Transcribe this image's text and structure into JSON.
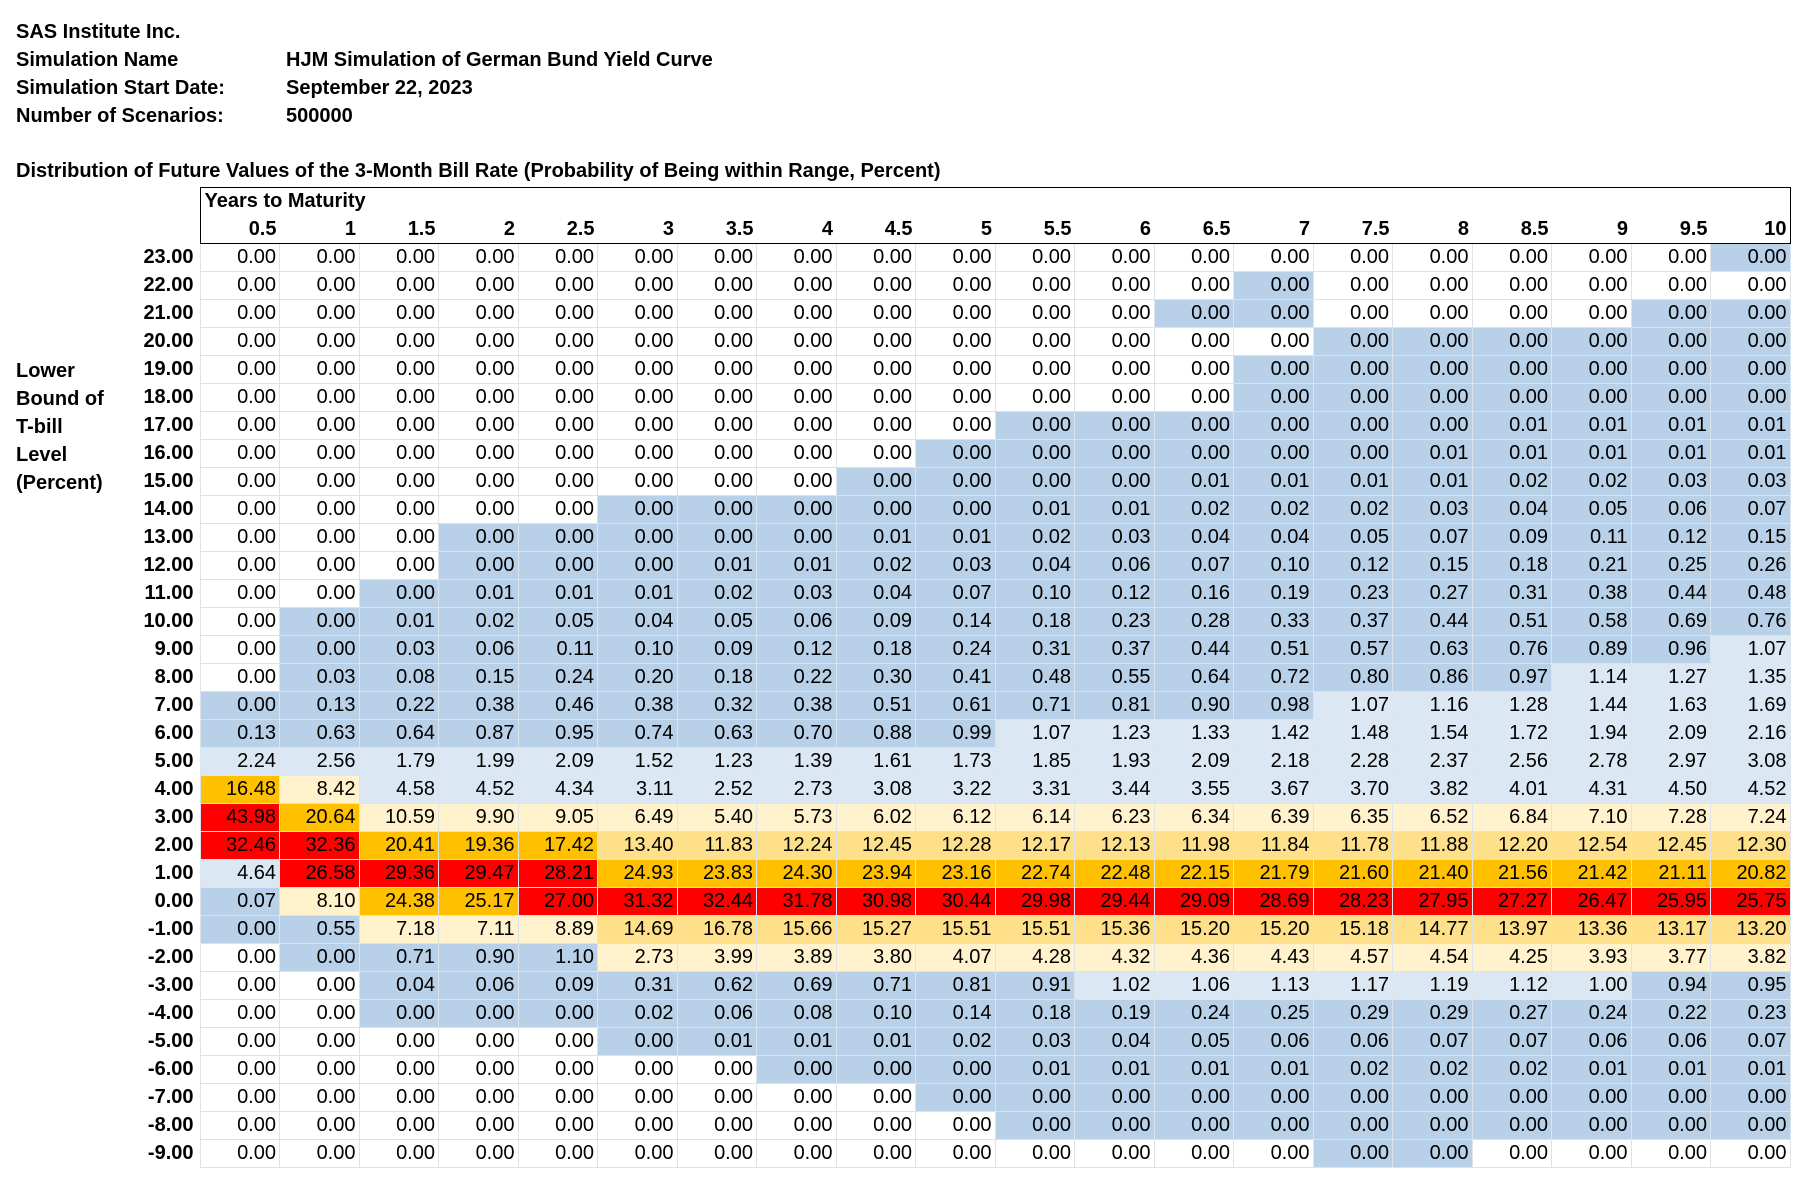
{
  "header": {
    "company": "SAS Institute Inc.",
    "sim_name_label": "Simulation Name",
    "sim_name": "HJM Simulation of German Bund Yield Curve",
    "start_date_label": "Simulation Start Date:",
    "start_date": "September 22, 2023",
    "scenarios_label": "Number of Scenarios:",
    "scenarios": "500000"
  },
  "table_title": "Distribution of Future Values of the 3-Month Bill Rate (Probability of Being within Range, Percent)",
  "side_label": [
    "Lower",
    "Bound of",
    "T-bill",
    "Level",
    "(Percent)"
  ],
  "column_group_label": "Years to Maturity",
  "columns": [
    "0.5",
    "1",
    "1.5",
    "2",
    "2.5",
    "3",
    "3.5",
    "4",
    "4.5",
    "5",
    "5.5",
    "6",
    "6.5",
    "7",
    "7.5",
    "8",
    "8.5",
    "9",
    "9.5",
    "10"
  ],
  "palette": {
    "blue": "#b8d0e8",
    "lightblue": "#dbe7f3",
    "lightyellow": "#fff2cc",
    "yellow": "#ffe08a",
    "gold": "#ffc000",
    "red": "#ff0000"
  },
  "rows": [
    {
      "label": "23.00",
      "values": [
        "0.00",
        "0.00",
        "0.00",
        "0.00",
        "0.00",
        "0.00",
        "0.00",
        "0.00",
        "0.00",
        "0.00",
        "0.00",
        "0.00",
        "0.00",
        "0.00",
        "0.00",
        "0.00",
        "0.00",
        "0.00",
        "0.00",
        "0.00"
      ],
      "shades": "wwwwwwwwwwwwwwwwwwwb"
    },
    {
      "label": "22.00",
      "values": [
        "0.00",
        "0.00",
        "0.00",
        "0.00",
        "0.00",
        "0.00",
        "0.00",
        "0.00",
        "0.00",
        "0.00",
        "0.00",
        "0.00",
        "0.00",
        "0.00",
        "0.00",
        "0.00",
        "0.00",
        "0.00",
        "0.00",
        "0.00"
      ],
      "shades": "wwwwwwwwwwwwwbwwwwww"
    },
    {
      "label": "21.00",
      "values": [
        "0.00",
        "0.00",
        "0.00",
        "0.00",
        "0.00",
        "0.00",
        "0.00",
        "0.00",
        "0.00",
        "0.00",
        "0.00",
        "0.00",
        "0.00",
        "0.00",
        "0.00",
        "0.00",
        "0.00",
        "0.00",
        "0.00",
        "0.00"
      ],
      "shades": "wwwwwwwwwwwwbbwwwwbb"
    },
    {
      "label": "20.00",
      "values": [
        "0.00",
        "0.00",
        "0.00",
        "0.00",
        "0.00",
        "0.00",
        "0.00",
        "0.00",
        "0.00",
        "0.00",
        "0.00",
        "0.00",
        "0.00",
        "0.00",
        "0.00",
        "0.00",
        "0.00",
        "0.00",
        "0.00",
        "0.00"
      ],
      "shades": "wwwwwwwwwwwwwwbbbbbb"
    },
    {
      "label": "19.00",
      "values": [
        "0.00",
        "0.00",
        "0.00",
        "0.00",
        "0.00",
        "0.00",
        "0.00",
        "0.00",
        "0.00",
        "0.00",
        "0.00",
        "0.00",
        "0.00",
        "0.00",
        "0.00",
        "0.00",
        "0.00",
        "0.00",
        "0.00",
        "0.00"
      ],
      "shades": "wwwwwwwwwwwwwbbbbbbb"
    },
    {
      "label": "18.00",
      "values": [
        "0.00",
        "0.00",
        "0.00",
        "0.00",
        "0.00",
        "0.00",
        "0.00",
        "0.00",
        "0.00",
        "0.00",
        "0.00",
        "0.00",
        "0.00",
        "0.00",
        "0.00",
        "0.00",
        "0.00",
        "0.00",
        "0.00",
        "0.00"
      ],
      "shades": "wwwwwwwwwwwwwbbbbbbb"
    },
    {
      "label": "17.00",
      "values": [
        "0.00",
        "0.00",
        "0.00",
        "0.00",
        "0.00",
        "0.00",
        "0.00",
        "0.00",
        "0.00",
        "0.00",
        "0.00",
        "0.00",
        "0.00",
        "0.00",
        "0.00",
        "0.00",
        "0.01",
        "0.01",
        "0.01",
        "0.01"
      ],
      "shades": "wwwwwwwwwwbbbbbbbbbb"
    },
    {
      "label": "16.00",
      "values": [
        "0.00",
        "0.00",
        "0.00",
        "0.00",
        "0.00",
        "0.00",
        "0.00",
        "0.00",
        "0.00",
        "0.00",
        "0.00",
        "0.00",
        "0.00",
        "0.00",
        "0.00",
        "0.01",
        "0.01",
        "0.01",
        "0.01",
        "0.01"
      ],
      "shades": "wwwwwwwwwbbbbbbbbbbb"
    },
    {
      "label": "15.00",
      "values": [
        "0.00",
        "0.00",
        "0.00",
        "0.00",
        "0.00",
        "0.00",
        "0.00",
        "0.00",
        "0.00",
        "0.00",
        "0.00",
        "0.00",
        "0.01",
        "0.01",
        "0.01",
        "0.01",
        "0.02",
        "0.02",
        "0.03",
        "0.03"
      ],
      "shades": "wwwwwwwwbbbbbbbbbbbb"
    },
    {
      "label": "14.00",
      "values": [
        "0.00",
        "0.00",
        "0.00",
        "0.00",
        "0.00",
        "0.00",
        "0.00",
        "0.00",
        "0.00",
        "0.00",
        "0.01",
        "0.01",
        "0.02",
        "0.02",
        "0.02",
        "0.03",
        "0.04",
        "0.05",
        "0.06",
        "0.07"
      ],
      "shades": "wwwwwbbbbbbbbbbbbbbb"
    },
    {
      "label": "13.00",
      "values": [
        "0.00",
        "0.00",
        "0.00",
        "0.00",
        "0.00",
        "0.00",
        "0.00",
        "0.00",
        "0.01",
        "0.01",
        "0.02",
        "0.03",
        "0.04",
        "0.04",
        "0.05",
        "0.07",
        "0.09",
        "0.11",
        "0.12",
        "0.15"
      ],
      "shades": "wwwbbbbbbbbbbbbbbbbb"
    },
    {
      "label": "12.00",
      "values": [
        "0.00",
        "0.00",
        "0.00",
        "0.00",
        "0.00",
        "0.00",
        "0.01",
        "0.01",
        "0.02",
        "0.03",
        "0.04",
        "0.06",
        "0.07",
        "0.10",
        "0.12",
        "0.15",
        "0.18",
        "0.21",
        "0.25",
        "0.26"
      ],
      "shades": "wwwbbbbbbbbbbbbbbbbb"
    },
    {
      "label": "11.00",
      "values": [
        "0.00",
        "0.00",
        "0.00",
        "0.01",
        "0.01",
        "0.01",
        "0.02",
        "0.03",
        "0.04",
        "0.07",
        "0.10",
        "0.12",
        "0.16",
        "0.19",
        "0.23",
        "0.27",
        "0.31",
        "0.38",
        "0.44",
        "0.48"
      ],
      "shades": "wwbbbbbbbbbbbbbbbbbb"
    },
    {
      "label": "10.00",
      "values": [
        "0.00",
        "0.00",
        "0.01",
        "0.02",
        "0.05",
        "0.04",
        "0.05",
        "0.06",
        "0.09",
        "0.14",
        "0.18",
        "0.23",
        "0.28",
        "0.33",
        "0.37",
        "0.44",
        "0.51",
        "0.58",
        "0.69",
        "0.76"
      ],
      "shades": "wbbbbbbbbbbbbbbbbbbb"
    },
    {
      "label": "9.00",
      "values": [
        "0.00",
        "0.00",
        "0.03",
        "0.06",
        "0.11",
        "0.10",
        "0.09",
        "0.12",
        "0.18",
        "0.24",
        "0.31",
        "0.37",
        "0.44",
        "0.51",
        "0.57",
        "0.63",
        "0.76",
        "0.89",
        "0.96",
        "1.07"
      ],
      "shades": "wbbbbbbbbbbbbbbbbbbl"
    },
    {
      "label": "8.00",
      "values": [
        "0.00",
        "0.03",
        "0.08",
        "0.15",
        "0.24",
        "0.20",
        "0.18",
        "0.22",
        "0.30",
        "0.41",
        "0.48",
        "0.55",
        "0.64",
        "0.72",
        "0.80",
        "0.86",
        "0.97",
        "1.14",
        "1.27",
        "1.35"
      ],
      "shades": "wbbbbbbbbbbbbbbbblll"
    },
    {
      "label": "7.00",
      "values": [
        "0.00",
        "0.13",
        "0.22",
        "0.38",
        "0.46",
        "0.38",
        "0.32",
        "0.38",
        "0.51",
        "0.61",
        "0.71",
        "0.81",
        "0.90",
        "0.98",
        "1.07",
        "1.16",
        "1.28",
        "1.44",
        "1.63",
        "1.69"
      ],
      "shades": "bbbbbbbbbbbbbbllllll"
    },
    {
      "label": "6.00",
      "values": [
        "0.13",
        "0.63",
        "0.64",
        "0.87",
        "0.95",
        "0.74",
        "0.63",
        "0.70",
        "0.88",
        "0.99",
        "1.07",
        "1.23",
        "1.33",
        "1.42",
        "1.48",
        "1.54",
        "1.72",
        "1.94",
        "2.09",
        "2.16"
      ],
      "shades": "bbbbbbbbbbllllllllll"
    },
    {
      "label": "5.00",
      "values": [
        "2.24",
        "2.56",
        "1.79",
        "1.99",
        "2.09",
        "1.52",
        "1.23",
        "1.39",
        "1.61",
        "1.73",
        "1.85",
        "1.93",
        "2.09",
        "2.18",
        "2.28",
        "2.37",
        "2.56",
        "2.78",
        "2.97",
        "3.08"
      ],
      "shades": "llllllllllllllllllll"
    },
    {
      "label": "4.00",
      "values": [
        "16.48",
        "8.42",
        "4.58",
        "4.52",
        "4.34",
        "3.11",
        "2.52",
        "2.73",
        "3.08",
        "3.22",
        "3.31",
        "3.44",
        "3.55",
        "3.67",
        "3.70",
        "3.82",
        "4.01",
        "4.31",
        "4.50",
        "4.52"
      ],
      "shades": "gyllllllllllllllllll"
    },
    {
      "label": "3.00",
      "values": [
        "43.98",
        "20.64",
        "10.59",
        "9.90",
        "9.05",
        "6.49",
        "5.40",
        "5.73",
        "6.02",
        "6.12",
        "6.14",
        "6.23",
        "6.34",
        "6.39",
        "6.35",
        "6.52",
        "6.84",
        "7.10",
        "7.28",
        "7.24"
      ],
      "shades": "rgyyyyyyyyyyyyyyyyyy"
    },
    {
      "label": "2.00",
      "values": [
        "32.46",
        "32.36",
        "20.41",
        "19.36",
        "17.42",
        "13.40",
        "11.83",
        "12.24",
        "12.45",
        "12.28",
        "12.17",
        "12.13",
        "11.98",
        "11.84",
        "11.78",
        "11.88",
        "12.20",
        "12.54",
        "12.45",
        "12.30"
      ],
      "shades": "rrgggooooooooooooooo"
    },
    {
      "label": "1.00",
      "values": [
        "4.64",
        "26.58",
        "29.36",
        "29.47",
        "28.21",
        "24.93",
        "23.83",
        "24.30",
        "23.94",
        "23.16",
        "22.74",
        "22.48",
        "22.15",
        "21.79",
        "21.60",
        "21.40",
        "21.56",
        "21.42",
        "21.11",
        "20.82"
      ],
      "shades": "lrrrrggggggggggggggg"
    },
    {
      "label": "0.00",
      "values": [
        "0.07",
        "8.10",
        "24.38",
        "25.17",
        "27.00",
        "31.32",
        "32.44",
        "31.78",
        "30.98",
        "30.44",
        "29.98",
        "29.44",
        "29.09",
        "28.69",
        "28.23",
        "27.95",
        "27.27",
        "26.47",
        "25.95",
        "25.75"
      ],
      "shades": "byggrrrrrrrrrrrrrrrr"
    },
    {
      "label": "-1.00",
      "values": [
        "0.00",
        "0.55",
        "7.18",
        "7.11",
        "8.89",
        "14.69",
        "16.78",
        "15.66",
        "15.27",
        "15.51",
        "15.51",
        "15.36",
        "15.20",
        "15.20",
        "15.18",
        "14.77",
        "13.97",
        "13.36",
        "13.17",
        "13.20"
      ],
      "shades": "bbyyyooooooooooooooo"
    },
    {
      "label": "-2.00",
      "values": [
        "0.00",
        "0.00",
        "0.71",
        "0.90",
        "1.10",
        "2.73",
        "3.99",
        "3.89",
        "3.80",
        "4.07",
        "4.28",
        "4.32",
        "4.36",
        "4.43",
        "4.57",
        "4.54",
        "4.25",
        "3.93",
        "3.77",
        "3.82"
      ],
      "shades": "wbbbbyyyyyyyyyyyyyyy"
    },
    {
      "label": "-3.00",
      "values": [
        "0.00",
        "0.00",
        "0.04",
        "0.06",
        "0.09",
        "0.31",
        "0.62",
        "0.69",
        "0.71",
        "0.81",
        "0.91",
        "1.02",
        "1.06",
        "1.13",
        "1.17",
        "1.19",
        "1.12",
        "1.00",
        "0.94",
        "0.95"
      ],
      "shades": "wwbbbbbbbbblllllllbb"
    },
    {
      "label": "-4.00",
      "values": [
        "0.00",
        "0.00",
        "0.00",
        "0.00",
        "0.00",
        "0.02",
        "0.06",
        "0.08",
        "0.10",
        "0.14",
        "0.18",
        "0.19",
        "0.24",
        "0.25",
        "0.29",
        "0.29",
        "0.27",
        "0.24",
        "0.22",
        "0.23"
      ],
      "shades": "wwbbbbbbbbbbbbbbbbbb"
    },
    {
      "label": "-5.00",
      "values": [
        "0.00",
        "0.00",
        "0.00",
        "0.00",
        "0.00",
        "0.00",
        "0.01",
        "0.01",
        "0.01",
        "0.02",
        "0.03",
        "0.04",
        "0.05",
        "0.06",
        "0.06",
        "0.07",
        "0.07",
        "0.06",
        "0.06",
        "0.07"
      ],
      "shades": "wwwwwbbbbbbbbbbbbbbb"
    },
    {
      "label": "-6.00",
      "values": [
        "0.00",
        "0.00",
        "0.00",
        "0.00",
        "0.00",
        "0.00",
        "0.00",
        "0.00",
        "0.00",
        "0.00",
        "0.01",
        "0.01",
        "0.01",
        "0.01",
        "0.02",
        "0.02",
        "0.02",
        "0.01",
        "0.01",
        "0.01"
      ],
      "shades": "wwwwwwwbbbbbbbbbbbbb"
    },
    {
      "label": "-7.00",
      "values": [
        "0.00",
        "0.00",
        "0.00",
        "0.00",
        "0.00",
        "0.00",
        "0.00",
        "0.00",
        "0.00",
        "0.00",
        "0.00",
        "0.00",
        "0.00",
        "0.00",
        "0.00",
        "0.00",
        "0.00",
        "0.00",
        "0.00",
        "0.00"
      ],
      "shades": "wwwwwwwwwbbbbbbbbbbb"
    },
    {
      "label": "-8.00",
      "values": [
        "0.00",
        "0.00",
        "0.00",
        "0.00",
        "0.00",
        "0.00",
        "0.00",
        "0.00",
        "0.00",
        "0.00",
        "0.00",
        "0.00",
        "0.00",
        "0.00",
        "0.00",
        "0.00",
        "0.00",
        "0.00",
        "0.00",
        "0.00"
      ],
      "shades": "wwwwwwwwwwbbbbbbbbbb"
    },
    {
      "label": "-9.00",
      "values": [
        "0.00",
        "0.00",
        "0.00",
        "0.00",
        "0.00",
        "0.00",
        "0.00",
        "0.00",
        "0.00",
        "0.00",
        "0.00",
        "0.00",
        "0.00",
        "0.00",
        "0.00",
        "0.00",
        "0.00",
        "0.00",
        "0.00",
        "0.00"
      ],
      "shades": "wwwwwwwwwwwwwwbbwwww"
    }
  ]
}
